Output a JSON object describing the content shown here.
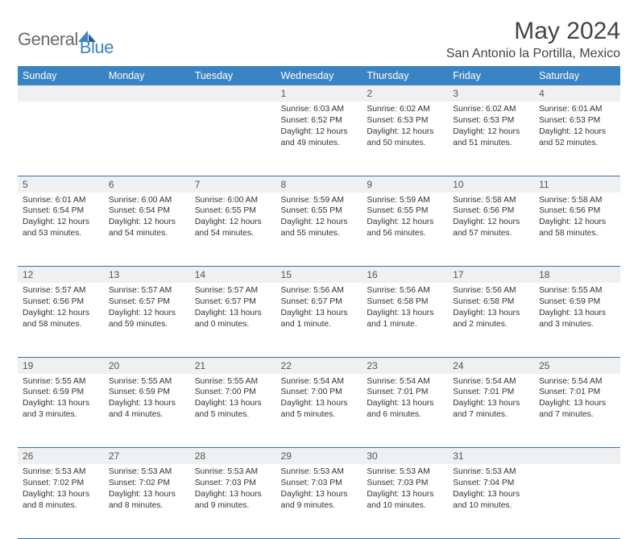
{
  "brand": {
    "general": "General",
    "blue": "Blue"
  },
  "title": "May 2024",
  "location": "San Antonio la Portilla, Mexico",
  "colors": {
    "header_bg": "#3a84c4",
    "header_fg": "#ffffff",
    "daynum_bg": "#eef0f1",
    "rule": "#3a6fa8",
    "text": "#333333",
    "logo_gray": "#6b6b6b",
    "logo_blue": "#3a84c4"
  },
  "day_headers": [
    "Sunday",
    "Monday",
    "Tuesday",
    "Wednesday",
    "Thursday",
    "Friday",
    "Saturday"
  ],
  "weeks": [
    {
      "nums": [
        "",
        "",
        "",
        "1",
        "2",
        "3",
        "4"
      ],
      "cells": [
        null,
        null,
        null,
        {
          "sunrise": "6:03 AM",
          "sunset": "6:52 PM",
          "dl": "12 hours and 49 minutes."
        },
        {
          "sunrise": "6:02 AM",
          "sunset": "6:53 PM",
          "dl": "12 hours and 50 minutes."
        },
        {
          "sunrise": "6:02 AM",
          "sunset": "6:53 PM",
          "dl": "12 hours and 51 minutes."
        },
        {
          "sunrise": "6:01 AM",
          "sunset": "6:53 PM",
          "dl": "12 hours and 52 minutes."
        }
      ]
    },
    {
      "nums": [
        "5",
        "6",
        "7",
        "8",
        "9",
        "10",
        "11"
      ],
      "cells": [
        {
          "sunrise": "6:01 AM",
          "sunset": "6:54 PM",
          "dl": "12 hours and 53 minutes."
        },
        {
          "sunrise": "6:00 AM",
          "sunset": "6:54 PM",
          "dl": "12 hours and 54 minutes."
        },
        {
          "sunrise": "6:00 AM",
          "sunset": "6:55 PM",
          "dl": "12 hours and 54 minutes."
        },
        {
          "sunrise": "5:59 AM",
          "sunset": "6:55 PM",
          "dl": "12 hours and 55 minutes."
        },
        {
          "sunrise": "5:59 AM",
          "sunset": "6:55 PM",
          "dl": "12 hours and 56 minutes."
        },
        {
          "sunrise": "5:58 AM",
          "sunset": "6:56 PM",
          "dl": "12 hours and 57 minutes."
        },
        {
          "sunrise": "5:58 AM",
          "sunset": "6:56 PM",
          "dl": "12 hours and 58 minutes."
        }
      ]
    },
    {
      "nums": [
        "12",
        "13",
        "14",
        "15",
        "16",
        "17",
        "18"
      ],
      "cells": [
        {
          "sunrise": "5:57 AM",
          "sunset": "6:56 PM",
          "dl": "12 hours and 58 minutes."
        },
        {
          "sunrise": "5:57 AM",
          "sunset": "6:57 PM",
          "dl": "12 hours and 59 minutes."
        },
        {
          "sunrise": "5:57 AM",
          "sunset": "6:57 PM",
          "dl": "13 hours and 0 minutes."
        },
        {
          "sunrise": "5:56 AM",
          "sunset": "6:57 PM",
          "dl": "13 hours and 1 minute."
        },
        {
          "sunrise": "5:56 AM",
          "sunset": "6:58 PM",
          "dl": "13 hours and 1 minute."
        },
        {
          "sunrise": "5:56 AM",
          "sunset": "6:58 PM",
          "dl": "13 hours and 2 minutes."
        },
        {
          "sunrise": "5:55 AM",
          "sunset": "6:59 PM",
          "dl": "13 hours and 3 minutes."
        }
      ]
    },
    {
      "nums": [
        "19",
        "20",
        "21",
        "22",
        "23",
        "24",
        "25"
      ],
      "cells": [
        {
          "sunrise": "5:55 AM",
          "sunset": "6:59 PM",
          "dl": "13 hours and 3 minutes."
        },
        {
          "sunrise": "5:55 AM",
          "sunset": "6:59 PM",
          "dl": "13 hours and 4 minutes."
        },
        {
          "sunrise": "5:55 AM",
          "sunset": "7:00 PM",
          "dl": "13 hours and 5 minutes."
        },
        {
          "sunrise": "5:54 AM",
          "sunset": "7:00 PM",
          "dl": "13 hours and 5 minutes."
        },
        {
          "sunrise": "5:54 AM",
          "sunset": "7:01 PM",
          "dl": "13 hours and 6 minutes."
        },
        {
          "sunrise": "5:54 AM",
          "sunset": "7:01 PM",
          "dl": "13 hours and 7 minutes."
        },
        {
          "sunrise": "5:54 AM",
          "sunset": "7:01 PM",
          "dl": "13 hours and 7 minutes."
        }
      ]
    },
    {
      "nums": [
        "26",
        "27",
        "28",
        "29",
        "30",
        "31",
        ""
      ],
      "cells": [
        {
          "sunrise": "5:53 AM",
          "sunset": "7:02 PM",
          "dl": "13 hours and 8 minutes."
        },
        {
          "sunrise": "5:53 AM",
          "sunset": "7:02 PM",
          "dl": "13 hours and 8 minutes."
        },
        {
          "sunrise": "5:53 AM",
          "sunset": "7:03 PM",
          "dl": "13 hours and 9 minutes."
        },
        {
          "sunrise": "5:53 AM",
          "sunset": "7:03 PM",
          "dl": "13 hours and 9 minutes."
        },
        {
          "sunrise": "5:53 AM",
          "sunset": "7:03 PM",
          "dl": "13 hours and 10 minutes."
        },
        {
          "sunrise": "5:53 AM",
          "sunset": "7:04 PM",
          "dl": "13 hours and 10 minutes."
        },
        null
      ]
    }
  ],
  "labels": {
    "sunrise": "Sunrise: ",
    "sunset": "Sunset: ",
    "daylight": "Daylight: "
  }
}
